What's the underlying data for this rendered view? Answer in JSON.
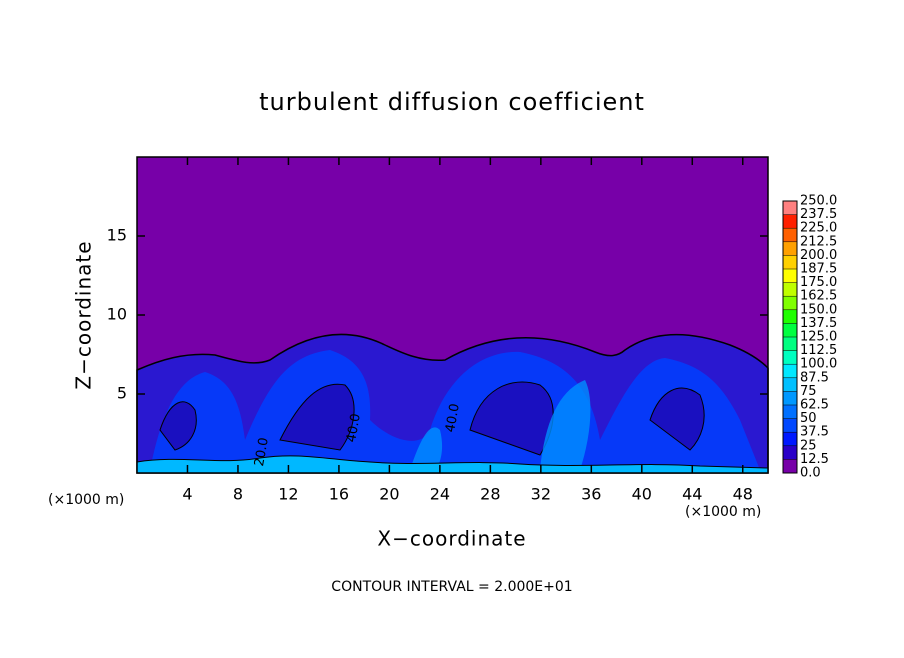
{
  "chart_data": {
    "type": "contour",
    "title": "turbulent diffusion coefficient",
    "x_label": "X−coordinate",
    "y_label": "Z−coordinate",
    "x_unit_left": "(×1000 m)",
    "x_unit_right": "(×1000 m)",
    "note": "CONTOUR INTERVAL = 2.000E+01",
    "xlim": [
      0,
      50
    ],
    "xticks": [
      4,
      8,
      12,
      16,
      20,
      24,
      28,
      32,
      36,
      40,
      44,
      48
    ],
    "ylim": [
      0,
      20
    ],
    "yticks": [
      5,
      10,
      15
    ],
    "contour_labels": [
      {
        "value": 40,
        "label": "40.0"
      },
      {
        "value": 40,
        "label": "40.0"
      },
      {
        "value": 20,
        "label": "20.0"
      }
    ],
    "colorbar": {
      "ticks": [
        {
          "value": 0,
          "label": "0.0"
        },
        {
          "value": 12.5,
          "label": "12.5"
        },
        25,
        {
          "value": 37.5,
          "label": "37.5"
        },
        50,
        {
          "value": 62.5,
          "label": "62.5"
        },
        75,
        {
          "value": 87.5,
          "label": "87.5"
        },
        {
          "value": 100,
          "label": "100.0"
        },
        {
          "value": 112.5,
          "label": "112.5"
        },
        {
          "value": 125,
          "label": "125.0"
        },
        {
          "value": 137.5,
          "label": "137.5"
        },
        {
          "value": 150,
          "label": "150.0"
        },
        {
          "value": 162.5,
          "label": "162.5"
        },
        {
          "value": 175,
          "label": "175.0"
        },
        {
          "value": 187.5,
          "label": "187.5"
        },
        {
          "value": 200,
          "label": "200.0"
        },
        {
          "value": 212.5,
          "label": "212.5"
        },
        {
          "value": 225,
          "label": "225.0"
        },
        {
          "value": 237.5,
          "label": "237.5"
        },
        {
          "value": 250,
          "label": "250.0"
        }
      ],
      "colors": [
        "#7700a8",
        "#2a00c8",
        "#0018ff",
        "#0048ff",
        "#0070ff",
        "#0098ff",
        "#00c0ff",
        "#00e8ff",
        "#00ffc0",
        "#00ff80",
        "#00ff40",
        "#20ff00",
        "#80ff00",
        "#c0ff00",
        "#ffff00",
        "#ffd000",
        "#ffa000",
        "#ff6000",
        "#ff2000",
        "#ff8080"
      ]
    }
  }
}
